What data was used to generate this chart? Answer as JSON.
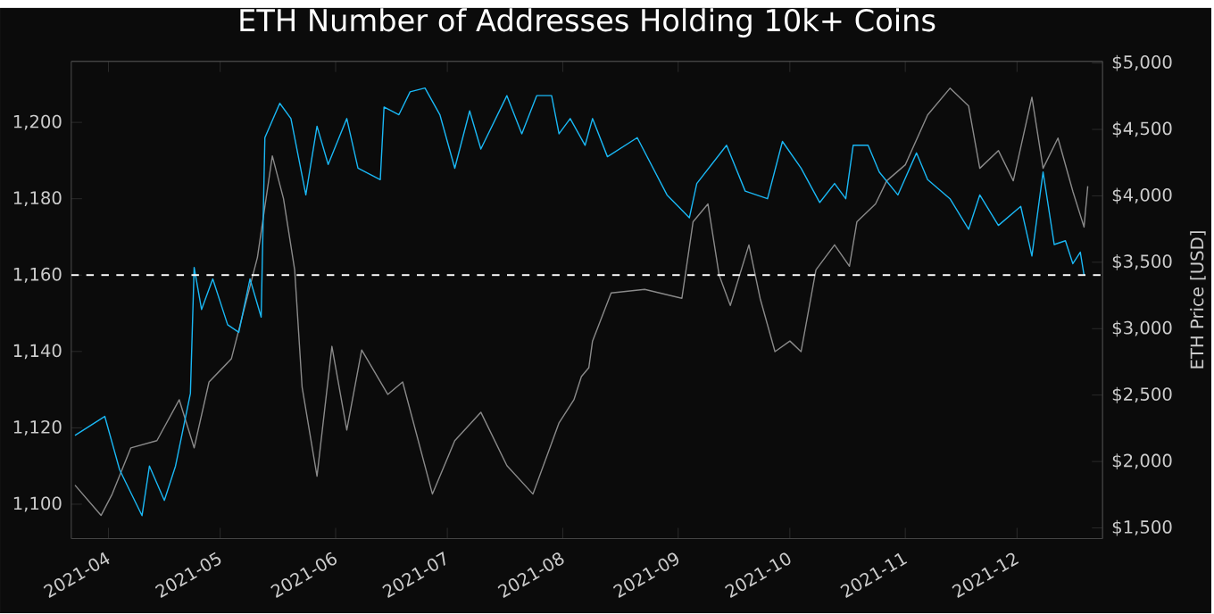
{
  "chart_data": {
    "type": "line",
    "title": "ETH Number of Addresses Holding 10k+ Coins",
    "y2label": "ETH Price [USD]",
    "xlim": [
      "2021-03-22",
      "2021-12-24"
    ],
    "xticks": [
      {
        "value": "2021-04-01",
        "label": "2021-04"
      },
      {
        "value": "2021-05-01",
        "label": "2021-05"
      },
      {
        "value": "2021-06-01",
        "label": "2021-06"
      },
      {
        "value": "2021-07-01",
        "label": "2021-07"
      },
      {
        "value": "2021-08-01",
        "label": "2021-08"
      },
      {
        "value": "2021-09-01",
        "label": "2021-09"
      },
      {
        "value": "2021-10-01",
        "label": "2021-10"
      },
      {
        "value": "2021-11-01",
        "label": "2021-11"
      },
      {
        "value": "2021-12-01",
        "label": "2021-12"
      }
    ],
    "ylim": [
      1091,
      1216
    ],
    "yticks": [
      {
        "value": 1100,
        "label": "1,100"
      },
      {
        "value": 1120,
        "label": "1,120"
      },
      {
        "value": 1140,
        "label": "1,140"
      },
      {
        "value": 1160,
        "label": "1,160"
      },
      {
        "value": 1180,
        "label": "1,180"
      },
      {
        "value": 1200,
        "label": "1,200"
      }
    ],
    "y2lim": [
      1420,
      5013
    ],
    "y2ticks": [
      {
        "value": 1500,
        "label": "$1,500"
      },
      {
        "value": 2000,
        "label": "$2,000"
      },
      {
        "value": 2500,
        "label": "$2,500"
      },
      {
        "value": 3000,
        "label": "$3,000"
      },
      {
        "value": 3500,
        "label": "$3,500"
      },
      {
        "value": 4000,
        "label": "$4,000"
      },
      {
        "value": 4500,
        "label": "$4,500"
      },
      {
        "value": 5000,
        "label": "$5,000"
      }
    ],
    "ref_lines": [
      {
        "axis": "y",
        "value": 1160,
        "color": "#ffffff",
        "line_style": "dashed"
      }
    ],
    "series": [
      {
        "axis": "y2",
        "color": "#8a8a8a",
        "x": [
          "2021-03-23",
          "2021-03-30",
          "2021-04-02",
          "2021-04-07",
          "2021-04-14",
          "2021-04-20",
          "2021-04-24",
          "2021-04-28",
          "2021-05-04",
          "2021-05-11",
          "2021-05-15",
          "2021-05-18",
          "2021-05-21",
          "2021-05-23",
          "2021-05-27",
          "2021-05-31",
          "2021-06-04",
          "2021-06-08",
          "2021-06-15",
          "2021-06-19",
          "2021-06-27",
          "2021-07-03",
          "2021-07-10",
          "2021-07-17",
          "2021-07-24",
          "2021-07-31",
          "2021-08-04",
          "2021-08-06",
          "2021-08-08",
          "2021-08-09",
          "2021-08-14",
          "2021-08-23",
          "2021-09-02",
          "2021-09-05",
          "2021-09-09",
          "2021-09-12",
          "2021-09-15",
          "2021-09-20",
          "2021-09-23",
          "2021-09-27",
          "2021-10-01",
          "2021-10-04",
          "2021-10-08",
          "2021-10-13",
          "2021-10-17",
          "2021-10-19",
          "2021-10-24",
          "2021-10-27",
          "2021-11-01",
          "2021-11-07",
          "2021-11-13",
          "2021-11-18",
          "2021-11-21",
          "2021-11-26",
          "2021-11-30",
          "2021-12-05",
          "2021-12-08",
          "2021-12-12",
          "2021-12-16",
          "2021-12-19",
          "2021-12-20"
        ],
        "values": [
          1822,
          1594,
          1755,
          2103,
          2157,
          2465,
          2103,
          2599,
          2773,
          3537,
          4301,
          3979,
          3443,
          2559,
          1889,
          2867,
          2237,
          2840,
          2505,
          2599,
          1755,
          2157,
          2371,
          1969,
          1755,
          2291,
          2465,
          2639,
          2706,
          2907,
          3269,
          3296,
          3229,
          3805,
          3939,
          3403,
          3175,
          3631,
          3229,
          2827,
          2907,
          2827,
          3443,
          3631,
          3470,
          3805,
          3939,
          4113,
          4234,
          4609,
          4810,
          4676,
          4207,
          4341,
          4113,
          4743,
          4207,
          4435,
          4033,
          3765,
          4073
        ]
      },
      {
        "axis": "y",
        "color": "#1ab8f5",
        "x": [
          "2021-03-23",
          "2021-03-31",
          "2021-04-04",
          "2021-04-10",
          "2021-04-12",
          "2021-04-16",
          "2021-04-19",
          "2021-04-23",
          "2021-04-24",
          "2021-04-26",
          "2021-04-29",
          "2021-05-03",
          "2021-05-06",
          "2021-05-09",
          "2021-05-12",
          "2021-05-13",
          "2021-05-17",
          "2021-05-20",
          "2021-05-24",
          "2021-05-27",
          "2021-05-30",
          "2021-06-04",
          "2021-06-07",
          "2021-06-13",
          "2021-06-14",
          "2021-06-18",
          "2021-06-21",
          "2021-06-25",
          "2021-06-29",
          "2021-07-03",
          "2021-07-07",
          "2021-07-10",
          "2021-07-17",
          "2021-07-21",
          "2021-07-25",
          "2021-07-29",
          "2021-07-31",
          "2021-08-03",
          "2021-08-07",
          "2021-08-09",
          "2021-08-13",
          "2021-08-21",
          "2021-08-29",
          "2021-09-04",
          "2021-09-06",
          "2021-09-14",
          "2021-09-19",
          "2021-09-25",
          "2021-09-29",
          "2021-10-04",
          "2021-10-09",
          "2021-10-13",
          "2021-10-16",
          "2021-10-18",
          "2021-10-22",
          "2021-10-25",
          "2021-10-30",
          "2021-11-04",
          "2021-11-07",
          "2021-11-13",
          "2021-11-18",
          "2021-11-21",
          "2021-11-26",
          "2021-12-02",
          "2021-12-05",
          "2021-12-08",
          "2021-12-11",
          "2021-12-14",
          "2021-12-16",
          "2021-12-18",
          "2021-12-19"
        ],
        "values": [
          1118,
          1123,
          1109,
          1097,
          1110,
          1101,
          1110,
          1129,
          1162,
          1151,
          1159,
          1147,
          1145,
          1159,
          1149,
          1196,
          1205,
          1201,
          1181,
          1199,
          1189,
          1201,
          1188,
          1185,
          1204,
          1202,
          1208,
          1209,
          1202,
          1188,
          1203,
          1193,
          1207,
          1197,
          1207,
          1207,
          1197,
          1201,
          1194,
          1201,
          1191,
          1196,
          1181,
          1175,
          1184,
          1194,
          1182,
          1180,
          1195,
          1188,
          1179,
          1184,
          1180,
          1194,
          1194,
          1187,
          1181,
          1192,
          1185,
          1180,
          1172,
          1181,
          1173,
          1178,
          1165,
          1187,
          1168,
          1169,
          1163,
          1166,
          1160
        ]
      }
    ]
  }
}
